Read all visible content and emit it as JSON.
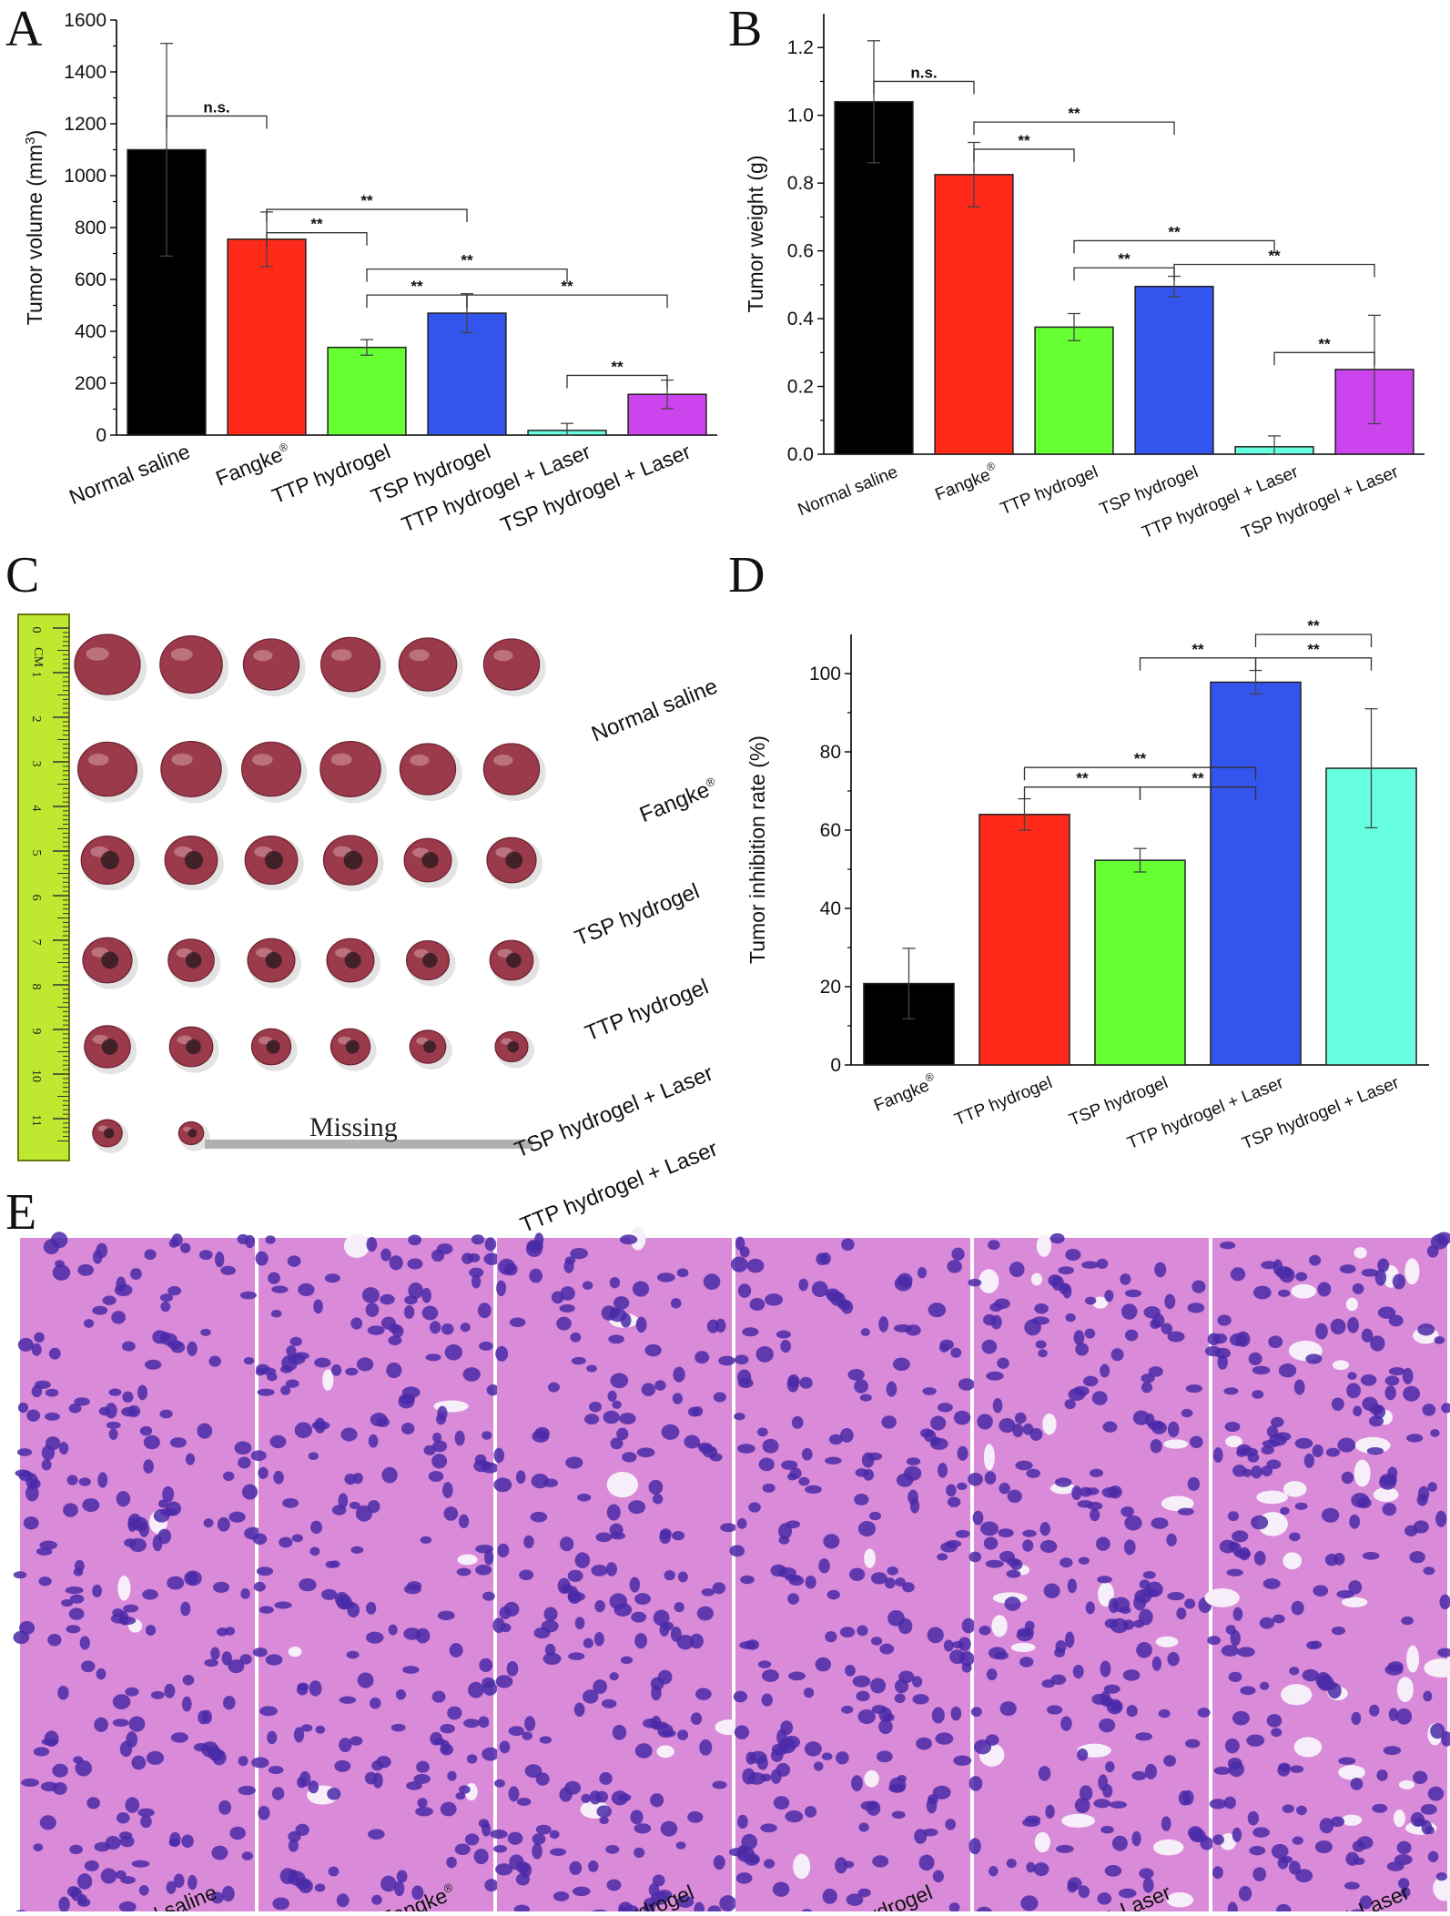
{
  "colors": {
    "black": "#000000",
    "red": "#ff2a1a",
    "green": "#66ff33",
    "blue": "#3355ee",
    "cyan": "#66ffe0",
    "magenta": "#cc44ee",
    "ruler": "#bfe830",
    "tumor": "#9a3a4a",
    "he_pink": "#d98ad8",
    "he_nuclei": "#4a2aa8"
  },
  "panels": {
    "A": "A",
    "B": "B",
    "C": "C",
    "D": "D",
    "E": "E"
  },
  "chart_data": [
    {
      "panel": "A",
      "type": "bar",
      "ylabel": "Tumor volume (mm",
      "ylabel_sup": "3",
      "ylabel_end": ")",
      "ylim": [
        0,
        1600
      ],
      "yticks": [
        0,
        200,
        400,
        600,
        800,
        1000,
        1200,
        1400,
        1600
      ],
      "categories": [
        "Normal saline",
        "Fangke",
        "TTP hydrogel",
        "TSP hydrogel",
        "TTP hydrogel + Laser",
        "TSP hydrogel + Laser"
      ],
      "category_sup": [
        "",
        "®",
        "",
        "",
        "",
        ""
      ],
      "values": [
        1100,
        755,
        338,
        470,
        18,
        157
      ],
      "errors": [
        410,
        105,
        30,
        75,
        27,
        55
      ],
      "colors": [
        "#000000",
        "#ff2a1a",
        "#66ff33",
        "#3355ee",
        "#66ffe0",
        "#cc44ee"
      ],
      "significance": [
        {
          "from": 0,
          "to": 1,
          "label": "n.s.",
          "y": 1230
        },
        {
          "from": 1,
          "to": 2,
          "label": "**",
          "y": 780
        },
        {
          "from": 1,
          "to": 3,
          "label": "**",
          "y": 870
        },
        {
          "from": 2,
          "to": 3,
          "label": "**",
          "y": 540
        },
        {
          "from": 2,
          "to": 4,
          "label": "**",
          "y": 640
        },
        {
          "from": 3,
          "to": 5,
          "label": "**",
          "y": 540
        },
        {
          "from": 4,
          "to": 5,
          "label": "**",
          "y": 230
        }
      ]
    },
    {
      "panel": "B",
      "type": "bar",
      "ylabel": "Tumor weight (g)",
      "ylim": [
        0,
        1.3
      ],
      "yticks": [
        0.0,
        0.2,
        0.4,
        0.6,
        0.8,
        1.0,
        1.2
      ],
      "ytick_labels": [
        "0.0",
        "0.2",
        "0.4",
        "0.6",
        "0.8",
        "1.0",
        "1.2"
      ],
      "categories": [
        "Normal saline",
        "Fangke",
        "TTP hydrogel",
        "TSP hydrogel",
        "TTP hydrogel + Laser",
        "TSP hydrogel + Laser"
      ],
      "category_sup": [
        "",
        "®",
        "",
        "",
        "",
        ""
      ],
      "values": [
        1.04,
        0.825,
        0.375,
        0.495,
        0.022,
        0.25
      ],
      "errors": [
        0.18,
        0.095,
        0.04,
        0.03,
        0.032,
        0.16
      ],
      "colors": [
        "#000000",
        "#ff2a1a",
        "#66ff33",
        "#3355ee",
        "#66ffe0",
        "#cc44ee"
      ],
      "significance": [
        {
          "from": 0,
          "to": 1,
          "label": "n.s.",
          "y": 1.1
        },
        {
          "from": 1,
          "to": 2,
          "label": "**",
          "y": 0.9
        },
        {
          "from": 1,
          "to": 3,
          "label": "**",
          "y": 0.98
        },
        {
          "from": 2,
          "to": 3,
          "label": "**",
          "y": 0.55
        },
        {
          "from": 2,
          "to": 4,
          "label": "**",
          "y": 0.63
        },
        {
          "from": 3,
          "to": 5,
          "label": "**",
          "y": 0.56
        },
        {
          "from": 4,
          "to": 5,
          "label": "**",
          "y": 0.3
        }
      ]
    },
    {
      "panel": "D",
      "type": "bar",
      "ylabel": "Tumor inhibition rate (%)",
      "ylim": [
        0,
        110
      ],
      "yticks": [
        0,
        20,
        40,
        60,
        80,
        100
      ],
      "categories": [
        "Fangke",
        "TTP hydrogel",
        "TSP hydrogel",
        "TTP hydrogel + Laser",
        "TSP hydrogel + Laser"
      ],
      "category_sup": [
        "®",
        "",
        "",
        "",
        ""
      ],
      "values": [
        20.8,
        64,
        52.3,
        97.8,
        75.8
      ],
      "errors": [
        9,
        4,
        3,
        3,
        15.2
      ],
      "colors": [
        "#000000",
        "#ff2a1a",
        "#66ff33",
        "#3355ee",
        "#66ffe0"
      ],
      "significance": [
        {
          "from": 1,
          "to": 2,
          "label": "**",
          "y": 71
        },
        {
          "from": 1,
          "to": 3,
          "label": "**",
          "y": 76
        },
        {
          "from": 2,
          "to": 3,
          "label": "**",
          "y": 71
        },
        {
          "from": 2,
          "to": 3,
          "label": "**",
          "y": 104,
          "override_from": 2.0
        },
        {
          "from": 3,
          "to": 4,
          "label": "**",
          "y": 104
        },
        {
          "from": 3,
          "to": 4,
          "label": "**",
          "y": 110
        }
      ]
    }
  ],
  "photo_c": {
    "row_labels": [
      "Normal saline",
      "Fangke",
      "TSP hydrogel",
      "TTP hydrogel",
      "TSP hydrogel + Laser",
      "TTP hydrogel + Laser"
    ],
    "row_label_sup": [
      "",
      "®",
      "",
      "",
      "",
      ""
    ],
    "tumors_per_row": [
      6,
      6,
      6,
      6,
      6,
      2
    ],
    "tumor_sizes": [
      [
        1.0,
        0.95,
        0.85,
        0.9,
        0.88,
        0.85
      ],
      [
        0.9,
        0.92,
        0.9,
        0.92,
        0.85,
        0.85
      ],
      [
        0.8,
        0.8,
        0.8,
        0.82,
        0.72,
        0.75
      ],
      [
        0.75,
        0.7,
        0.72,
        0.72,
        0.65,
        0.66
      ],
      [
        0.7,
        0.66,
        0.6,
        0.6,
        0.55,
        0.5
      ],
      [
        0.45,
        0.38
      ]
    ],
    "missing_label": "Missing",
    "ruler_unit": "CM",
    "ruler_numbers": [
      "0",
      "1",
      "2",
      "3",
      "4",
      "5",
      "6",
      "7",
      "8",
      "9",
      "10",
      "11"
    ]
  },
  "histology_e": {
    "labels": [
      "Normal saline",
      "Fangke",
      "TSP hydrogel",
      "TTP hydrogel",
      "TSP hydrogel + Laser",
      "TTP hydrogel + Laser"
    ],
    "label_sup": [
      "",
      "®",
      "",
      "",
      "",
      ""
    ],
    "vacuole_level": [
      0.05,
      0.12,
      0.1,
      0.05,
      0.35,
      0.55
    ]
  }
}
